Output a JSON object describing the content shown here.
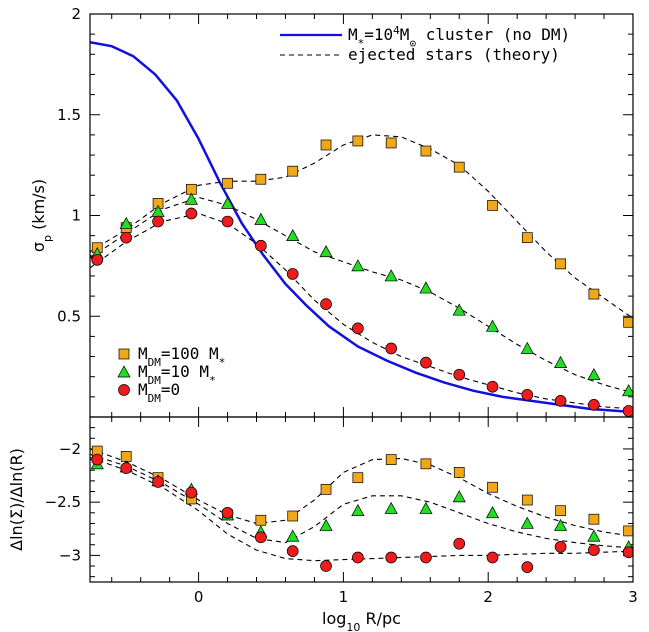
{
  "chart_data": [
    {
      "type": "line",
      "panel": "top",
      "ylabel": "σ",
      "ylabel_sub": "p",
      "ylabel_tail": " (km/s)",
      "xlim": [
        -0.75,
        3.0
      ],
      "ylim": [
        0.0,
        2.0
      ],
      "yticks": [
        0.5,
        1.0,
        1.5,
        2.0
      ],
      "ytick_labels": [
        "0.5",
        "1",
        "1.5",
        "2"
      ],
      "legend_lines": [
        {
          "key": "cluster",
          "text_pre": "M",
          "text_sub": "*",
          "text_mid": "=10",
          "text_sup": "4",
          "text_mid2": "M",
          "text_sub2": "⊙",
          "text_post": " cluster (no DM)",
          "color": "#1010e0",
          "style": "solid"
        },
        {
          "key": "ejected",
          "text": "ejected stars (theory)",
          "color": "#000000",
          "style": "dashed"
        }
      ],
      "legend_markers": [
        {
          "key": "dm100",
          "text_pre": "M",
          "text_sub": "DM",
          "text_post": "=100 M",
          "text_sub2": "*"
        },
        {
          "key": "dm10",
          "text_pre": "M",
          "text_sub": "DM",
          "text_post": "=10 M",
          "text_sub2": "*"
        },
        {
          "key": "dm0",
          "text_pre": "M",
          "text_sub": "DM",
          "text_post": "=0",
          "text_sub2": ""
        }
      ],
      "series": [
        {
          "key": "cluster",
          "kind": "line",
          "color": "#1010e0",
          "x": [
            -0.75,
            -0.6,
            -0.45,
            -0.3,
            -0.15,
            0.0,
            0.15,
            0.3,
            0.45,
            0.6,
            0.75,
            0.9,
            1.1,
            1.3,
            1.5,
            1.7,
            1.9,
            2.1,
            2.3,
            2.5,
            2.7,
            2.9,
            3.0
          ],
          "y": [
            1.86,
            1.84,
            1.79,
            1.7,
            1.57,
            1.38,
            1.16,
            0.96,
            0.8,
            0.66,
            0.55,
            0.45,
            0.35,
            0.28,
            0.22,
            0.17,
            0.13,
            0.1,
            0.08,
            0.06,
            0.04,
            0.03,
            0.025
          ]
        },
        {
          "key": "theory100",
          "kind": "dashed",
          "color": "#000000",
          "x": [
            -0.75,
            -0.5,
            -0.25,
            0.0,
            0.2,
            0.4,
            0.6,
            0.8,
            1.0,
            1.2,
            1.4,
            1.6,
            1.8,
            2.0,
            2.2,
            2.4,
            2.6,
            2.8,
            3.0
          ],
          "y": [
            0.82,
            0.93,
            1.06,
            1.15,
            1.17,
            1.17,
            1.19,
            1.26,
            1.35,
            1.4,
            1.39,
            1.33,
            1.25,
            1.12,
            0.97,
            0.82,
            0.69,
            0.59,
            0.49
          ]
        },
        {
          "key": "theory10",
          "kind": "dashed",
          "color": "#000000",
          "x": [
            -0.75,
            -0.5,
            -0.25,
            0.0,
            0.2,
            0.4,
            0.6,
            0.8,
            1.0,
            1.2,
            1.4,
            1.6,
            1.8,
            2.0,
            2.2,
            2.4,
            2.6,
            2.8,
            3.0
          ],
          "y": [
            0.79,
            0.91,
            1.03,
            1.09,
            1.05,
            0.98,
            0.9,
            0.82,
            0.77,
            0.72,
            0.68,
            0.62,
            0.54,
            0.45,
            0.36,
            0.28,
            0.21,
            0.16,
            0.12
          ]
        },
        {
          "key": "theory0",
          "kind": "dashed",
          "color": "#000000",
          "x": [
            -0.75,
            -0.5,
            -0.25,
            0.0,
            0.2,
            0.4,
            0.6,
            0.8,
            1.0,
            1.2,
            1.4,
            1.6,
            1.8,
            2.0,
            2.2,
            2.4,
            2.6,
            2.8,
            3.0
          ],
          "y": [
            0.74,
            0.87,
            0.97,
            1.01,
            0.96,
            0.86,
            0.73,
            0.58,
            0.46,
            0.37,
            0.3,
            0.25,
            0.2,
            0.16,
            0.12,
            0.09,
            0.07,
            0.05,
            0.04
          ]
        },
        {
          "key": "dm100",
          "kind": "square",
          "color": "#f0a818",
          "x": [
            -0.7,
            -0.5,
            -0.28,
            -0.05,
            0.2,
            0.43,
            0.65,
            0.88,
            1.1,
            1.33,
            1.57,
            1.8,
            2.03,
            2.27,
            2.5,
            2.73,
            2.97
          ],
          "y": [
            0.84,
            0.94,
            1.06,
            1.13,
            1.16,
            1.18,
            1.22,
            1.35,
            1.37,
            1.36,
            1.32,
            1.24,
            1.05,
            0.89,
            0.76,
            0.61,
            0.47
          ]
        },
        {
          "key": "dm10",
          "kind": "triangle",
          "color": "#22dd22",
          "x": [
            -0.7,
            -0.5,
            -0.28,
            -0.05,
            0.2,
            0.43,
            0.65,
            0.88,
            1.1,
            1.33,
            1.57,
            1.8,
            2.03,
            2.27,
            2.5,
            2.73,
            2.97
          ],
          "y": [
            0.81,
            0.96,
            1.02,
            1.08,
            1.06,
            0.98,
            0.9,
            0.82,
            0.75,
            0.7,
            0.64,
            0.53,
            0.45,
            0.34,
            0.27,
            0.21,
            0.13
          ]
        },
        {
          "key": "dm0",
          "kind": "circle",
          "color": "#ee1c1c",
          "x": [
            -0.7,
            -0.5,
            -0.28,
            -0.05,
            0.2,
            0.43,
            0.65,
            0.88,
            1.1,
            1.33,
            1.57,
            1.8,
            2.03,
            2.27,
            2.5,
            2.73,
            2.97
          ],
          "y": [
            0.78,
            0.89,
            0.97,
            1.01,
            0.97,
            0.85,
            0.71,
            0.56,
            0.44,
            0.34,
            0.27,
            0.21,
            0.15,
            0.11,
            0.08,
            0.06,
            0.03
          ]
        }
      ]
    },
    {
      "type": "line",
      "panel": "bottom",
      "xlabel": "log",
      "xlabel_sub": "10",
      "xlabel_tail": " R/pc",
      "ylabel": "Δln(Σ)/Δln(R)",
      "xlim": [
        -0.75,
        3.0
      ],
      "ylim": [
        -3.25,
        -1.7
      ],
      "xticks": [
        0,
        1,
        2,
        3
      ],
      "xtick_labels": [
        "0",
        "1",
        "2",
        "3"
      ],
      "yticks": [
        -2.0,
        -2.5,
        -3.0
      ],
      "ytick_labels": [
        "−2",
        "−2.5",
        "−3"
      ],
      "series": [
        {
          "key": "theory100",
          "kind": "dashed",
          "color": "#000000",
          "x": [
            -0.75,
            -0.5,
            -0.25,
            0.0,
            0.2,
            0.4,
            0.6,
            0.8,
            1.0,
            1.2,
            1.4,
            1.6,
            1.8,
            2.0,
            2.2,
            2.4,
            2.6,
            2.8,
            3.0
          ],
          "y": [
            -2.0,
            -2.12,
            -2.28,
            -2.48,
            -2.62,
            -2.7,
            -2.67,
            -2.48,
            -2.22,
            -2.1,
            -2.09,
            -2.15,
            -2.27,
            -2.42,
            -2.54,
            -2.64,
            -2.72,
            -2.78,
            -2.82
          ]
        },
        {
          "key": "theory10",
          "kind": "dashed",
          "color": "#000000",
          "x": [
            -0.75,
            -0.5,
            -0.25,
            0.0,
            0.2,
            0.4,
            0.6,
            0.8,
            1.0,
            1.2,
            1.4,
            1.6,
            1.8,
            2.0,
            2.2,
            2.4,
            2.6,
            2.8,
            3.0
          ],
          "y": [
            -2.05,
            -2.16,
            -2.32,
            -2.52,
            -2.7,
            -2.84,
            -2.88,
            -2.73,
            -2.52,
            -2.44,
            -2.44,
            -2.5,
            -2.6,
            -2.7,
            -2.78,
            -2.84,
            -2.88,
            -2.91,
            -2.93
          ]
        },
        {
          "key": "theory0",
          "kind": "dashed",
          "color": "#000000",
          "x": [
            -0.75,
            -0.5,
            -0.25,
            0.0,
            0.2,
            0.4,
            0.6,
            0.8,
            1.0,
            1.2,
            1.4,
            1.6,
            1.8,
            2.0,
            2.2,
            2.4,
            2.6,
            2.8,
            3.0
          ],
          "y": [
            -2.08,
            -2.2,
            -2.36,
            -2.58,
            -2.8,
            -2.95,
            -3.03,
            -3.05,
            -3.04,
            -3.03,
            -3.02,
            -3.01,
            -3.0,
            -3.0,
            -2.99,
            -2.98,
            -2.98,
            -2.97,
            -2.96
          ]
        },
        {
          "key": "dm100",
          "kind": "square",
          "color": "#f0a818",
          "x": [
            -0.7,
            -0.5,
            -0.28,
            -0.05,
            0.2,
            0.43,
            0.65,
            0.88,
            1.1,
            1.33,
            1.57,
            1.8,
            2.03,
            2.27,
            2.5,
            2.73,
            2.97
          ],
          "y": [
            -2.02,
            -2.07,
            -2.27,
            -2.47,
            -2.62,
            -2.67,
            -2.63,
            -2.38,
            -2.27,
            -2.1,
            -2.14,
            -2.22,
            -2.36,
            -2.48,
            -2.58,
            -2.66,
            -2.77
          ]
        },
        {
          "key": "dm10",
          "kind": "triangle",
          "color": "#22dd22",
          "x": [
            -0.7,
            -0.5,
            -0.28,
            -0.05,
            0.2,
            0.43,
            0.65,
            0.88,
            1.1,
            1.33,
            1.57,
            1.8,
            2.03,
            2.27,
            2.5,
            2.73,
            2.97
          ],
          "y": [
            -2.14,
            -2.17,
            -2.3,
            -2.38,
            -2.62,
            -2.78,
            -2.82,
            -2.72,
            -2.58,
            -2.56,
            -2.56,
            -2.45,
            -2.6,
            -2.7,
            -2.72,
            -2.82,
            -2.92
          ]
        },
        {
          "key": "dm0",
          "kind": "circle",
          "color": "#ee1c1c",
          "x": [
            -0.7,
            -0.5,
            -0.28,
            -0.05,
            0.2,
            0.43,
            0.65,
            0.88,
            1.1,
            1.33,
            1.57,
            1.8,
            2.03,
            2.27,
            2.5,
            2.73,
            2.97
          ],
          "y": [
            -2.1,
            -2.18,
            -2.31,
            -2.41,
            -2.6,
            -2.83,
            -2.96,
            -3.1,
            -3.02,
            -3.02,
            -3.02,
            -2.89,
            -3.02,
            -3.11,
            -2.92,
            -2.95,
            -2.97
          ]
        }
      ]
    }
  ]
}
